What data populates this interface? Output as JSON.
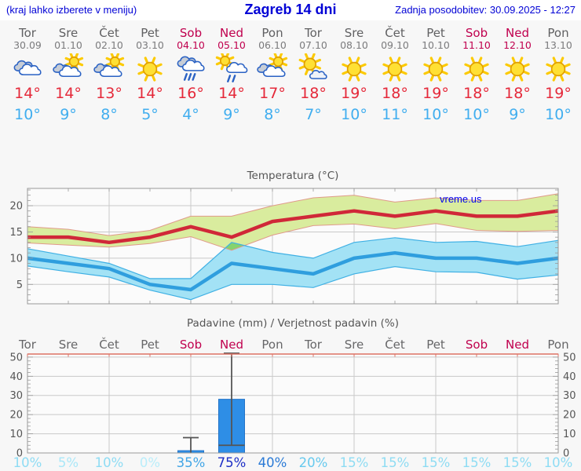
{
  "header": {
    "left": "(kraj lahko izberete v meniju)",
    "title": "Zagreb 14 dni",
    "right": "Zadnja posodobitev: 30.09.2025 - 12:27"
  },
  "watermark": "vreme.us",
  "colors": {
    "header_blue": "#0202d6",
    "weekend": "#c0004e",
    "weekday": "#606062",
    "tmax_red": "#e5293a",
    "tmin_blue": "#41aeef",
    "line_max": "#d02838",
    "line_min": "#2f9ede",
    "band_max_fill": "#d9ec9e",
    "band_max_edge": "#e09a8a",
    "band_min_fill": "#a3e2f5",
    "band_min_edge": "#3fb0e4",
    "band_overlap": "#84d36e",
    "bar_fill": "#2e8ee6",
    "bar_edge": "#2273c8",
    "whisker": "#555555",
    "grid": "#c9c9c9",
    "axis": "#999999",
    "axis_text": "#555555",
    "plot_bg": "#fbfbfb",
    "precip_top_axis": "#dd7264"
  },
  "days": [
    {
      "name": "Tor",
      "date": "30.09",
      "weekend": false,
      "icon": "cloudy",
      "tmax": "14°",
      "tmin": "10°",
      "prob": "10%",
      "prob_color": "#8edcf4"
    },
    {
      "name": "Sre",
      "date": "01.10",
      "weekend": false,
      "icon": "partly-sunny",
      "tmax": "14°",
      "tmin": "9°",
      "prob": "5%",
      "prob_color": "#a9e7f8"
    },
    {
      "name": "Čet",
      "date": "02.10",
      "weekend": false,
      "icon": "partly-sunny",
      "tmax": "13°",
      "tmin": "8°",
      "prob": "10%",
      "prob_color": "#8edcf4"
    },
    {
      "name": "Pet",
      "date": "03.10",
      "weekend": false,
      "icon": "sunny",
      "tmax": "14°",
      "tmin": "5°",
      "prob": "0%",
      "prob_color": "#b9edfa"
    },
    {
      "name": "Sob",
      "date": "04.10",
      "weekend": true,
      "icon": "rain",
      "tmax": "16°",
      "tmin": "4°",
      "prob": "35%",
      "prob_color": "#41a5e6"
    },
    {
      "name": "Ned",
      "date": "05.10",
      "weekend": true,
      "icon": "sun-rain",
      "tmax": "14°",
      "tmin": "9°",
      "prob": "75%",
      "prob_color": "#1c2ec6"
    },
    {
      "name": "Pon",
      "date": "06.10",
      "weekend": false,
      "icon": "partly-sunny",
      "tmax": "17°",
      "tmin": "8°",
      "prob": "40%",
      "prob_color": "#2a7ad6"
    },
    {
      "name": "Tor",
      "date": "07.10",
      "weekend": false,
      "icon": "mostly-sunny",
      "tmax": "18°",
      "tmin": "7°",
      "prob": "20%",
      "prob_color": "#66c9ee"
    },
    {
      "name": "Sre",
      "date": "08.10",
      "weekend": false,
      "icon": "sunny",
      "tmax": "19°",
      "tmin": "10°",
      "prob": "15%",
      "prob_color": "#8edcf3"
    },
    {
      "name": "Čet",
      "date": "09.10",
      "weekend": false,
      "icon": "sunny",
      "tmax": "18°",
      "tmin": "11°",
      "prob": "15%",
      "prob_color": "#8edcf3"
    },
    {
      "name": "Pet",
      "date": "10.10",
      "weekend": false,
      "icon": "sunny",
      "tmax": "19°",
      "tmin": "10°",
      "prob": "15%",
      "prob_color": "#8edcf3"
    },
    {
      "name": "Sob",
      "date": "11.10",
      "weekend": true,
      "icon": "sunny",
      "tmax": "18°",
      "tmin": "10°",
      "prob": "15%",
      "prob_color": "#8edcf3"
    },
    {
      "name": "Ned",
      "date": "12.10",
      "weekend": true,
      "icon": "sunny",
      "tmax": "18°",
      "tmin": "9°",
      "prob": "15%",
      "prob_color": "#8edcf3"
    },
    {
      "name": "Pon",
      "date": "13.10",
      "weekend": false,
      "icon": "sunny",
      "tmax": "19°",
      "tmin": "10°",
      "prob": "10%",
      "prob_color": "#8edcf4"
    }
  ],
  "chart_data": [
    {
      "type": "line",
      "title": "Temperatura (°C)",
      "categories": [
        "Tor 30.09",
        "Sre 01.10",
        "Čet 02.10",
        "Pet 03.10",
        "Sob 04.10",
        "Ned 05.10",
        "Pon 06.10",
        "Tor 07.10",
        "Sre 08.10",
        "Čet 09.10",
        "Pet 10.10",
        "Sob 11.10",
        "Ned 12.10",
        "Pon 13.10"
      ],
      "series": [
        {
          "name": "temperatura max",
          "values": [
            14,
            14,
            13,
            14,
            16,
            14,
            17,
            18,
            19,
            18,
            19,
            18,
            18,
            19
          ]
        },
        {
          "name": "temperatura min",
          "values": [
            10,
            9,
            8,
            5,
            4,
            9,
            8,
            7,
            10,
            11,
            10,
            10,
            9,
            10
          ]
        },
        {
          "name": "max razpon zgoraj",
          "values": [
            16,
            15.5,
            14.3,
            15.3,
            18,
            18,
            20,
            21.5,
            22,
            20.7,
            21.5,
            21,
            21,
            22.3
          ]
        },
        {
          "name": "max razpon spodaj",
          "values": [
            12.9,
            12.5,
            12.1,
            12.8,
            14.1,
            11.5,
            14.4,
            16.2,
            16.5,
            15.6,
            16.6,
            15.3,
            15.1,
            15.3
          ]
        },
        {
          "name": "min razpon zgoraj",
          "values": [
            11.8,
            10.4,
            9,
            6.1,
            6.1,
            13,
            11.1,
            10,
            13,
            13.9,
            13,
            13.2,
            12.2,
            13.4
          ]
        },
        {
          "name": "min razpon spodaj",
          "values": [
            8.5,
            7.4,
            6.4,
            3.9,
            2.1,
            5,
            5,
            4.4,
            7,
            8.4,
            7.4,
            7.3,
            6,
            6.8
          ]
        }
      ],
      "ylim": [
        1.3,
        23.3
      ],
      "yticks": [
        5,
        10,
        15,
        20
      ],
      "grid": true,
      "legend": false
    },
    {
      "type": "bar",
      "title": "Padavine (mm) / Verjetnost padavin (%)",
      "categories": [
        "Tor",
        "Sre",
        "Čet",
        "Pet",
        "Sob",
        "Ned",
        "Pon",
        "Tor",
        "Sre",
        "Čet",
        "Pet",
        "Sob",
        "Ned",
        "Pon"
      ],
      "values": [
        0,
        0,
        0,
        0,
        1.2,
        28,
        0,
        0,
        0,
        0,
        0,
        0,
        0,
        0
      ],
      "whiskers": [
        null,
        null,
        null,
        null,
        {
          "low": 0,
          "high": 8
        },
        {
          "low": 4,
          "high": 52
        },
        null,
        null,
        null,
        null,
        null,
        null,
        null,
        null
      ],
      "probabilities": [
        "10%",
        "5%",
        "10%",
        "0%",
        "35%",
        "75%",
        "40%",
        "20%",
        "15%",
        "15%",
        "15%",
        "15%",
        "15%",
        "10%"
      ],
      "ylim": [
        0,
        51.6
      ],
      "yticks": [
        0,
        10,
        20,
        30,
        40,
        50
      ],
      "grid": true,
      "legend": false
    }
  ]
}
